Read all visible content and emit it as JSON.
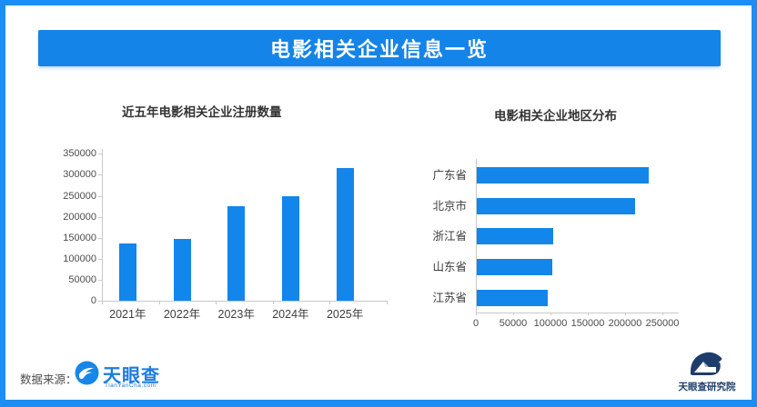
{
  "page": {
    "banner_title": "电影相关企业信息一览"
  },
  "colors": {
    "banner_blue": "#1484e8",
    "bar_blue": "#1286ea",
    "border_blue": "#1d8df3",
    "logo_blue": "#1c7ce0",
    "research_navy": "#1d3c6b"
  },
  "chart_data": [
    {
      "type": "bar",
      "title": "近五年电影相关企业注册数量",
      "categories": [
        "2021年",
        "2022年",
        "2023年",
        "2024年",
        "2025年"
      ],
      "values": [
        137000,
        148000,
        225000,
        248000,
        315000
      ],
      "xlabel": "",
      "ylabel": "",
      "ylim": [
        0,
        350000
      ],
      "yticks": [
        0,
        50000,
        100000,
        150000,
        200000,
        250000,
        300000,
        350000
      ],
      "grid": false,
      "legend": "none"
    },
    {
      "type": "bar-horizontal",
      "title": "电影相关企业地区分布",
      "categories": [
        "广东省",
        "北京市",
        "浙江省",
        "山东省",
        "江苏省"
      ],
      "values": [
        230000,
        212000,
        103000,
        101000,
        95000
      ],
      "xlabel": "",
      "ylabel": "",
      "xlim": [
        0,
        250000
      ],
      "xticks": [
        0,
        50000,
        100000,
        150000,
        200000,
        250000
      ],
      "grid": false,
      "legend": "none"
    }
  ],
  "footer": {
    "source_label": "数据来源：",
    "logo_text": "天眼查",
    "logo_subtext": "TianYanCha.com",
    "research_logo_text": "天眼查研究院"
  }
}
